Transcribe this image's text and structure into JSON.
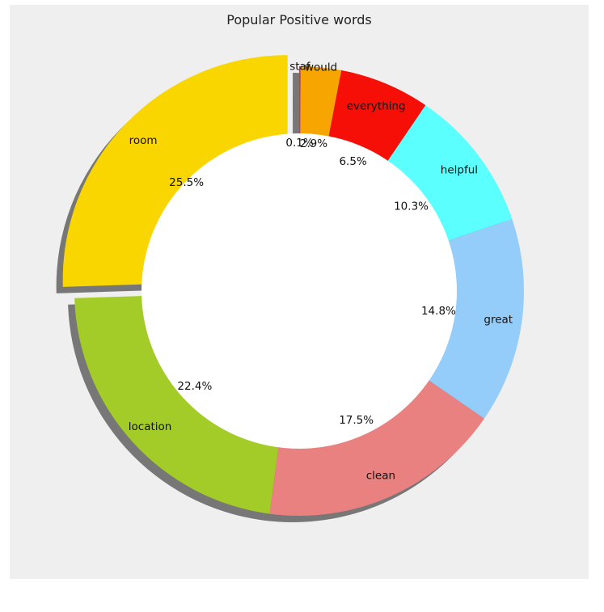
{
  "chart_data": {
    "type": "pie",
    "variant": "donut",
    "title": "Popular Positive words",
    "background": "#efefef",
    "shadow": true,
    "start_angle_deg": 90,
    "direction": "counterclockwise",
    "slices": [
      {
        "label": "room",
        "percent": 25.5,
        "pct_text": "25.5%",
        "color": "#f9d600",
        "exploded": true
      },
      {
        "label": "location",
        "percent": 22.4,
        "pct_text": "22.4%",
        "color": "#a3cc28",
        "exploded": false
      },
      {
        "label": "clean",
        "percent": 17.5,
        "pct_text": "17.5%",
        "color": "#e8817f",
        "exploded": false
      },
      {
        "label": "great",
        "percent": 14.8,
        "pct_text": "14.8%",
        "color": "#94cdfa",
        "exploded": false
      },
      {
        "label": "helpful",
        "percent": 10.3,
        "pct_text": "10.3%",
        "color": "#5afffe",
        "exploded": false
      },
      {
        "label": "everything",
        "percent": 6.5,
        "pct_text": "6.5%",
        "color": "#f50f07",
        "exploded": false
      },
      {
        "label": "would",
        "percent": 2.9,
        "pct_text": "2.9%",
        "color": "#f7a500",
        "exploded": false
      },
      {
        "label": "staf",
        "percent": 0.1,
        "pct_text": "0.1%",
        "color": "#9d4d6a",
        "exploded": false
      }
    ]
  }
}
